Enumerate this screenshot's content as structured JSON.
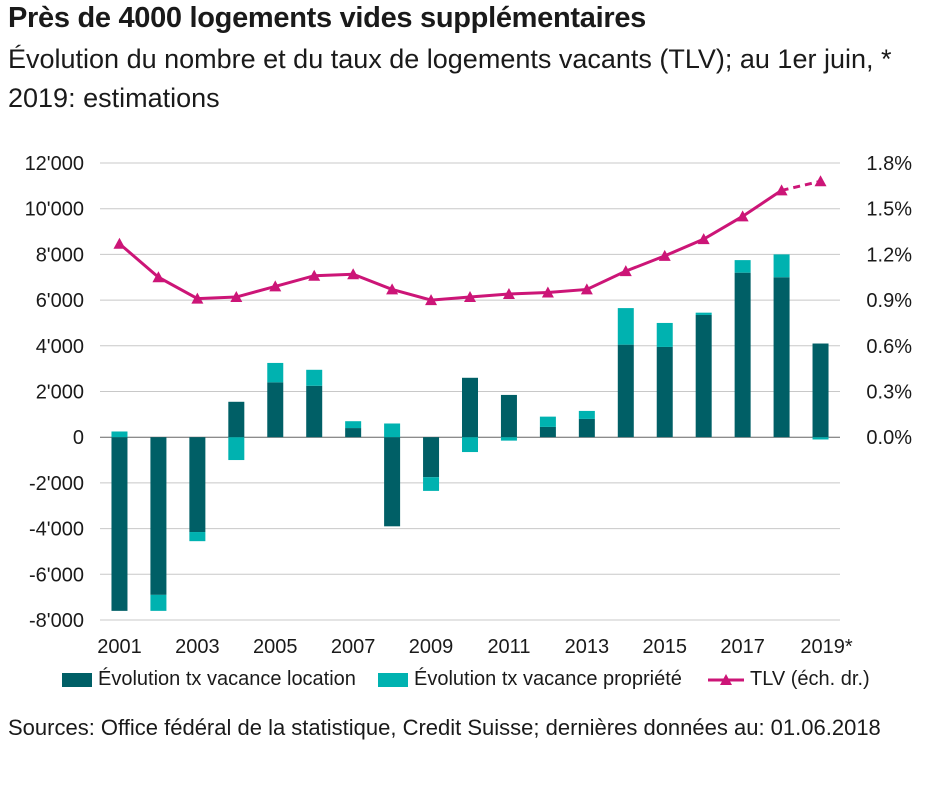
{
  "title": "Près de 4000 logements vides supplémentaires",
  "subtitle": "Évolution du nombre et du taux de logements vacants (TLV); au 1er juin, * 2019: estimations",
  "source": "Sources: Office fédéral de la statistique, Credit Suisse; dernières données au: 01.06.2018",
  "colors": {
    "location": "#005f66",
    "propriete": "#00b2b0",
    "tlv": "#cc1577",
    "grid": "#c8c8c8",
    "axis": "#666666"
  },
  "legend": {
    "location": "Évolution tx vacance location",
    "propriete": "Évolution tx vacance propriété",
    "tlv": "TLV (éch. dr.)"
  },
  "chart_data": {
    "type": "bar",
    "stacked": true,
    "categories": [
      "2001",
      "2002",
      "2003",
      "2004",
      "2005",
      "2006",
      "2007",
      "2008",
      "2009",
      "2010",
      "2011",
      "2012",
      "2013",
      "2014",
      "2015",
      "2016",
      "2017",
      "2018",
      "2019*"
    ],
    "x_tick_labels": [
      "2001",
      "",
      "2003",
      "",
      "2005",
      "",
      "2007",
      "",
      "2009",
      "",
      "2011",
      "",
      "2013",
      "",
      "2015",
      "",
      "2017",
      "",
      "2019*"
    ],
    "series": [
      {
        "name": "Évolution tx vacance location",
        "axis": "left",
        "type": "bar",
        "values": [
          -7600,
          -6900,
          -4150,
          1550,
          2400,
          2250,
          400,
          -3900,
          -1750,
          2600,
          1850,
          450,
          800,
          4050,
          3950,
          5350,
          7200,
          7000,
          4100
        ]
      },
      {
        "name": "Évolution tx vacance propriété",
        "axis": "left",
        "type": "bar",
        "values": [
          250,
          -700,
          -400,
          -1000,
          850,
          700,
          300,
          600,
          -600,
          -650,
          -150,
          450,
          350,
          1600,
          1050,
          100,
          550,
          1000,
          -100
        ]
      },
      {
        "name": "TLV (éch. dr.)",
        "axis": "right",
        "type": "line",
        "values": [
          1.27,
          1.05,
          0.91,
          0.92,
          0.99,
          1.06,
          1.07,
          0.97,
          0.9,
          0.92,
          0.94,
          0.95,
          0.97,
          1.09,
          1.19,
          1.3,
          1.45,
          1.62,
          1.68
        ],
        "estimated_from_index": 17
      }
    ],
    "y_left": {
      "min": -8000,
      "max": 12000,
      "ticks": [
        -8000,
        -6000,
        -4000,
        -2000,
        0,
        2000,
        4000,
        6000,
        8000,
        10000,
        12000
      ],
      "tick_labels": [
        "-8'000",
        "-6'000",
        "-4'000",
        "-2'000",
        "0",
        "2'000",
        "4'000",
        "6'000",
        "8'000",
        "10'000",
        "12'000"
      ]
    },
    "y_right": {
      "min": -1.2,
      "max": 1.8,
      "ticks": [
        0.0,
        0.3,
        0.6,
        0.9,
        1.2,
        1.5,
        1.8
      ],
      "tick_labels": [
        "0.0%",
        "0.3%",
        "0.6%",
        "0.9%",
        "1.2%",
        "1.5%",
        "1.8%"
      ]
    },
    "grid": true,
    "legend_position": "bottom"
  }
}
